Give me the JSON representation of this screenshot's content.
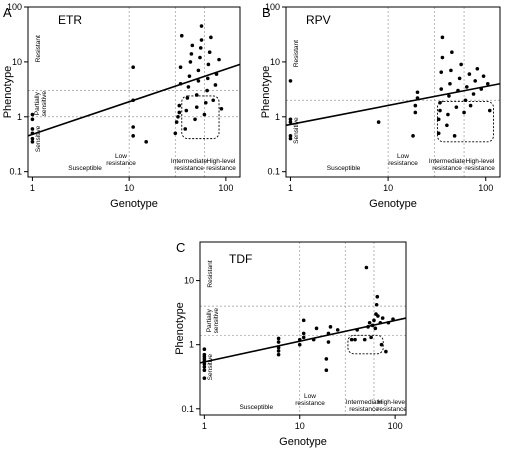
{
  "chart_data": [
    {
      "type": "scatter",
      "panel": "A",
      "title": "ETR",
      "xlabel": "Genotype",
      "ylabel": "Phenotype",
      "x_scale": "log",
      "y_scale": "log",
      "xlim": [
        0.9,
        140
      ],
      "ylim": [
        0.08,
        100
      ],
      "x_ticks": [
        "1",
        "10",
        "100"
      ],
      "y_ticks": [
        "0.1",
        "1",
        "10",
        "100"
      ],
      "genotype_zones": [
        {
          "label": "Susceptible",
          "from": 1,
          "to": 10
        },
        {
          "label": "Low resistance",
          "from": 10,
          "to": 30
        },
        {
          "label": "Intermediate resistance",
          "from": 30,
          "to": 60
        },
        {
          "label": "High-level resistance",
          "from": 60,
          "to": 120
        }
      ],
      "phenotype_zones": [
        {
          "label": "Sensitive",
          "below": 1
        },
        {
          "label": "Partially sensitive",
          "from": 1,
          "to": 3
        },
        {
          "label": "Resistant",
          "above": 3
        }
      ],
      "cutoffs": [
        1,
        3
      ],
      "trend_line": {
        "x": [
          0.9,
          140
        ],
        "y": [
          0.45,
          9
        ]
      },
      "highlight_box": {
        "x": [
          35,
          85
        ],
        "y": [
          0.4,
          2.4
        ]
      },
      "points": [
        {
          "x": 1,
          "y": 0.35
        },
        {
          "x": 1,
          "y": 0.4
        },
        {
          "x": 1,
          "y": 0.5
        },
        {
          "x": 1,
          "y": 0.6
        },
        {
          "x": 1,
          "y": 0.9
        },
        {
          "x": 1,
          "y": 1.1
        },
        {
          "x": 11,
          "y": 0.45
        },
        {
          "x": 11,
          "y": 0.65
        },
        {
          "x": 11,
          "y": 2.0
        },
        {
          "x": 11,
          "y": 8.0
        },
        {
          "x": 15,
          "y": 0.35
        },
        {
          "x": 30,
          "y": 0.5
        },
        {
          "x": 31,
          "y": 0.8
        },
        {
          "x": 32,
          "y": 1.0
        },
        {
          "x": 33,
          "y": 1.2
        },
        {
          "x": 33,
          "y": 1.6
        },
        {
          "x": 34,
          "y": 4.0
        },
        {
          "x": 34,
          "y": 8.0
        },
        {
          "x": 35,
          "y": 30
        },
        {
          "x": 38,
          "y": 0.6
        },
        {
          "x": 39,
          "y": 1.3
        },
        {
          "x": 40,
          "y": 2.2
        },
        {
          "x": 41,
          "y": 3.5
        },
        {
          "x": 42,
          "y": 5.5
        },
        {
          "x": 43,
          "y": 10
        },
        {
          "x": 44,
          "y": 14
        },
        {
          "x": 45,
          "y": 20
        },
        {
          "x": 48,
          "y": 0.9
        },
        {
          "x": 50,
          "y": 1.5
        },
        {
          "x": 50,
          "y": 2.5
        },
        {
          "x": 52,
          "y": 4.5
        },
        {
          "x": 52,
          "y": 7
        },
        {
          "x": 54,
          "y": 12
        },
        {
          "x": 55,
          "y": 18
        },
        {
          "x": 56,
          "y": 25
        },
        {
          "x": 56,
          "y": 45
        },
        {
          "x": 60,
          "y": 1.1
        },
        {
          "x": 62,
          "y": 1.8
        },
        {
          "x": 64,
          "y": 3
        },
        {
          "x": 65,
          "y": 5
        },
        {
          "x": 66,
          "y": 9
        },
        {
          "x": 68,
          "y": 15
        },
        {
          "x": 70,
          "y": 28
        },
        {
          "x": 74,
          "y": 2
        },
        {
          "x": 78,
          "y": 3.8
        },
        {
          "x": 80,
          "y": 6
        },
        {
          "x": 85,
          "y": 11
        },
        {
          "x": 90,
          "y": 1.4
        }
      ]
    },
    {
      "type": "scatter",
      "panel": "B",
      "title": "RPV",
      "xlabel": "Genotype",
      "ylabel": "Phenotype",
      "x_scale": "log",
      "y_scale": "log",
      "xlim": [
        0.9,
        140
      ],
      "ylim": [
        0.08,
        100
      ],
      "x_ticks": [
        "1",
        "10",
        "100"
      ],
      "y_ticks": [
        "0.1",
        "1",
        "10",
        "100"
      ],
      "genotype_zones": [
        {
          "label": "Susceptible",
          "from": 1,
          "to": 10
        },
        {
          "label": "Low resistance",
          "from": 10,
          "to": 30
        },
        {
          "label": "Intermediate resistance",
          "from": 30,
          "to": 60
        },
        {
          "label": "High-level resistance",
          "from": 60,
          "to": 120
        }
      ],
      "phenotype_zones": [
        {
          "label": "Sensitive",
          "below": 2
        },
        {
          "label": "Resistant",
          "above": 2
        }
      ],
      "cutoffs": [
        2
      ],
      "trend_line": {
        "x": [
          0.9,
          140
        ],
        "y": [
          0.7,
          4
        ]
      },
      "highlight_box": {
        "x": [
          32,
          120
        ],
        "y": [
          0.35,
          1.9
        ]
      },
      "points": [
        {
          "x": 1,
          "y": 0.4
        },
        {
          "x": 1,
          "y": 0.45
        },
        {
          "x": 1,
          "y": 0.8
        },
        {
          "x": 1,
          "y": 0.9
        },
        {
          "x": 1,
          "y": 4.5
        },
        {
          "x": 8,
          "y": 0.8
        },
        {
          "x": 18,
          "y": 0.45
        },
        {
          "x": 19,
          "y": 1.2
        },
        {
          "x": 19,
          "y": 1.6
        },
        {
          "x": 20,
          "y": 2.2
        },
        {
          "x": 20,
          "y": 2.8
        },
        {
          "x": 33,
          "y": 0.5
        },
        {
          "x": 33,
          "y": 0.9
        },
        {
          "x": 34,
          "y": 1.3
        },
        {
          "x": 34,
          "y": 1.8
        },
        {
          "x": 35,
          "y": 3.2
        },
        {
          "x": 35,
          "y": 6.5
        },
        {
          "x": 36,
          "y": 12
        },
        {
          "x": 36,
          "y": 28
        },
        {
          "x": 40,
          "y": 0.7
        },
        {
          "x": 41,
          "y": 1.1
        },
        {
          "x": 42,
          "y": 2.4
        },
        {
          "x": 43,
          "y": 4
        },
        {
          "x": 44,
          "y": 7
        },
        {
          "x": 45,
          "y": 15
        },
        {
          "x": 48,
          "y": 0.45
        },
        {
          "x": 50,
          "y": 1.5
        },
        {
          "x": 52,
          "y": 3
        },
        {
          "x": 54,
          "y": 5
        },
        {
          "x": 56,
          "y": 9
        },
        {
          "x": 60,
          "y": 1.2
        },
        {
          "x": 62,
          "y": 2
        },
        {
          "x": 64,
          "y": 3.5
        },
        {
          "x": 68,
          "y": 6
        },
        {
          "x": 70,
          "y": 1.6
        },
        {
          "x": 75,
          "y": 2.6
        },
        {
          "x": 78,
          "y": 4.5
        },
        {
          "x": 82,
          "y": 7.5
        },
        {
          "x": 90,
          "y": 3.2
        },
        {
          "x": 95,
          "y": 5.5
        },
        {
          "x": 105,
          "y": 4
        },
        {
          "x": 110,
          "y": 1.3
        }
      ]
    },
    {
      "type": "scatter",
      "panel": "C",
      "title": "TDF",
      "xlabel": "Genotype",
      "ylabel": "Phenotype",
      "x_scale": "log",
      "y_scale": "log",
      "xlim": [
        0.9,
        130
      ],
      "ylim": [
        0.08,
        40
      ],
      "x_ticks": [
        "1",
        "10",
        "100"
      ],
      "y_ticks": [
        "0.1",
        "1",
        "10"
      ],
      "genotype_zones": [
        {
          "label": "Susceptible",
          "from": 1,
          "to": 10
        },
        {
          "label": "Low resistance",
          "from": 10,
          "to": 30
        },
        {
          "label": "Intermediate resistance",
          "from": 30,
          "to": 60
        },
        {
          "label": "High-level resistance",
          "from": 60,
          "to": 120
        }
      ],
      "phenotype_zones": [
        {
          "label": "Sensitive",
          "below": 1.4
        },
        {
          "label": "Partially sensitive",
          "from": 1.4,
          "to": 4
        },
        {
          "label": "Resistant",
          "above": 4
        }
      ],
      "cutoffs": [
        1.4,
        4
      ],
      "trend_line": {
        "x": [
          0.9,
          130
        ],
        "y": [
          0.52,
          2.6
        ]
      },
      "highlight_box": {
        "x": [
          32,
          75
        ],
        "y": [
          0.72,
          1.4
        ]
      },
      "points": [
        {
          "x": 1,
          "y": 0.3
        },
        {
          "x": 1,
          "y": 0.4
        },
        {
          "x": 1,
          "y": 0.45
        },
        {
          "x": 1,
          "y": 0.5
        },
        {
          "x": 1,
          "y": 0.55
        },
        {
          "x": 1,
          "y": 0.6
        },
        {
          "x": 1,
          "y": 0.65
        },
        {
          "x": 1,
          "y": 0.7
        },
        {
          "x": 1,
          "y": 0.85
        },
        {
          "x": 6,
          "y": 0.7
        },
        {
          "x": 6,
          "y": 0.8
        },
        {
          "x": 6,
          "y": 0.9
        },
        {
          "x": 6,
          "y": 1.1
        },
        {
          "x": 6,
          "y": 1.25
        },
        {
          "x": 10,
          "y": 1.0
        },
        {
          "x": 10,
          "y": 1.2
        },
        {
          "x": 11,
          "y": 1.3
        },
        {
          "x": 11,
          "y": 1.5
        },
        {
          "x": 11,
          "y": 2.4
        },
        {
          "x": 14,
          "y": 1.2
        },
        {
          "x": 15,
          "y": 1.8
        },
        {
          "x": 19,
          "y": 0.4
        },
        {
          "x": 19,
          "y": 0.6
        },
        {
          "x": 20,
          "y": 1.1
        },
        {
          "x": 20,
          "y": 1.5
        },
        {
          "x": 21,
          "y": 1.9
        },
        {
          "x": 25,
          "y": 1.7
        },
        {
          "x": 35,
          "y": 1.2
        },
        {
          "x": 38,
          "y": 1.2
        },
        {
          "x": 40,
          "y": 1.7
        },
        {
          "x": 48,
          "y": 1.2
        },
        {
          "x": 50,
          "y": 16
        },
        {
          "x": 52,
          "y": 1.9
        },
        {
          "x": 54,
          "y": 2.2
        },
        {
          "x": 56,
          "y": 1.3
        },
        {
          "x": 58,
          "y": 2.0
        },
        {
          "x": 60,
          "y": 2.4
        },
        {
          "x": 62,
          "y": 1.8
        },
        {
          "x": 63,
          "y": 3.0
        },
        {
          "x": 64,
          "y": 4.2
        },
        {
          "x": 65,
          "y": 5.6
        },
        {
          "x": 66,
          "y": 2.8
        },
        {
          "x": 70,
          "y": 2.2
        },
        {
          "x": 72,
          "y": 1.0
        },
        {
          "x": 74,
          "y": 2.6
        },
        {
          "x": 80,
          "y": 0.78
        },
        {
          "x": 85,
          "y": 2.2
        },
        {
          "x": 95,
          "y": 2.5
        }
      ]
    }
  ]
}
